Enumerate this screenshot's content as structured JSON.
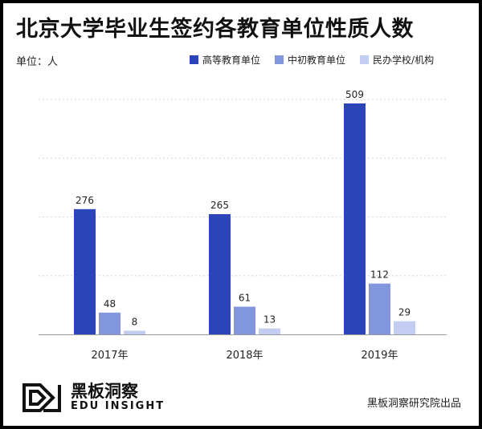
{
  "chart_data": {
    "type": "bar",
    "title": "北京大学毕业生签约各教育单位性质人数",
    "unit_label": "单位：人",
    "categories": [
      "2017年",
      "2018年",
      "2019年"
    ],
    "series": [
      {
        "name": "高等教育单位",
        "color": "#2b45b8",
        "values": [
          276,
          265,
          509
        ]
      },
      {
        "name": "中初教育单位",
        "color": "#8196dc",
        "values": [
          48,
          61,
          112
        ]
      },
      {
        "name": "民办学校/机构",
        "color": "#c3ccf1",
        "values": [
          8,
          13,
          29
        ]
      }
    ],
    "ylim": [
      0,
      550
    ],
    "grid": true,
    "legend_position": "top-right"
  },
  "footer": {
    "brand_cn": "黑板洞察",
    "brand_en": "EDU INSIGHT",
    "producer": "黑板洞察研究院出品"
  }
}
